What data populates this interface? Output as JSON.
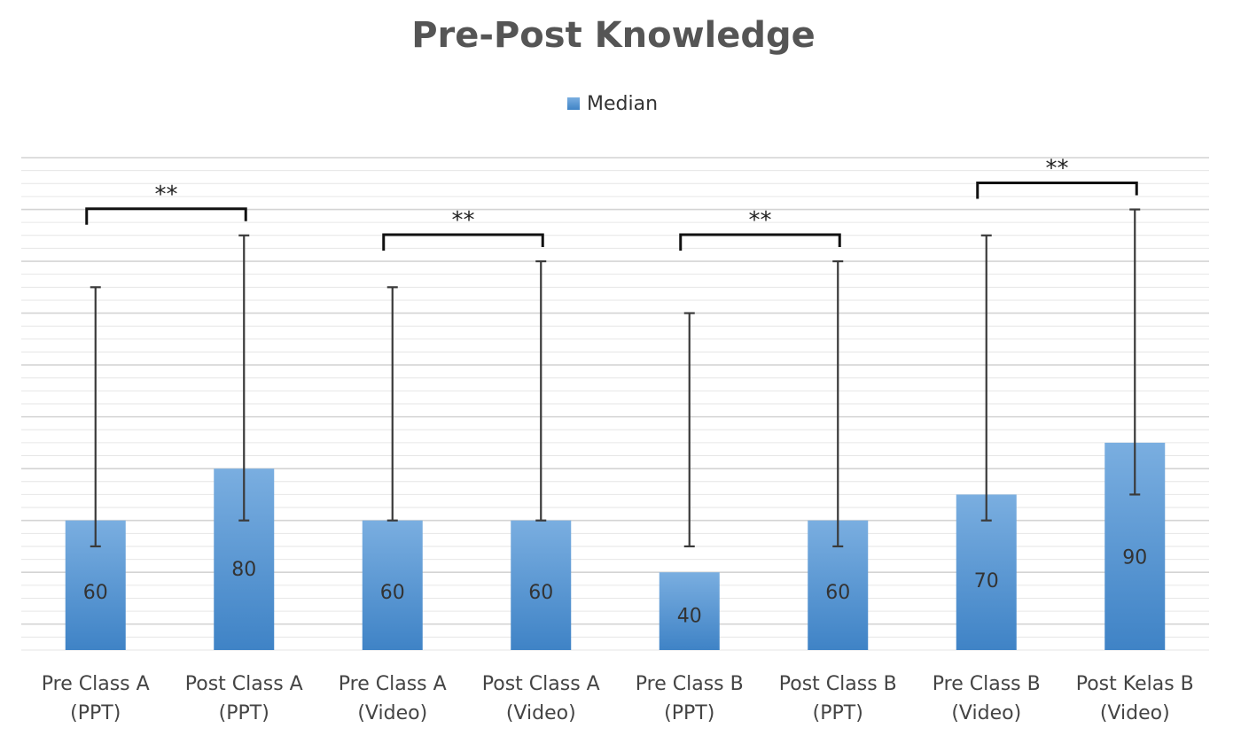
{
  "chart_data": {
    "type": "bar",
    "title": "Pre-Post Knowledge",
    "legend": {
      "position": "top-center",
      "entries": [
        "Median"
      ]
    },
    "categories": [
      [
        "Pre Class A",
        "(PPT)"
      ],
      [
        "Post Class A",
        "(PPT)"
      ],
      [
        "Pre Class A",
        "(Video)"
      ],
      [
        "Post Class  A",
        "(Video)"
      ],
      [
        "Pre Class B",
        "(PPT)"
      ],
      [
        "Post Class B",
        "(PPT)"
      ],
      [
        "Pre Class B",
        "(Video)"
      ],
      [
        "Post Kelas B",
        "(Video)"
      ]
    ],
    "series": [
      {
        "name": "Median",
        "color": "#5b9bd5",
        "values": [
          60,
          80,
          60,
          60,
          40,
          60,
          70,
          90
        ],
        "data_labels": [
          "60",
          "80",
          "60",
          "60",
          "40",
          "60",
          "70",
          "90"
        ],
        "error_low": [
          50,
          60,
          60,
          60,
          50,
          50,
          60,
          70
        ],
        "error_high": [
          150,
          170,
          150,
          160,
          140,
          160,
          170,
          180
        ]
      }
    ],
    "significance": [
      {
        "pair": [
          0,
          1
        ],
        "label": "**"
      },
      {
        "pair": [
          2,
          3
        ],
        "label": "**"
      },
      {
        "pair": [
          4,
          5
        ],
        "label": "**"
      },
      {
        "pair": [
          6,
          7
        ],
        "label": "**"
      }
    ],
    "ylim": [
      10,
      200
    ],
    "grid": true,
    "xlabel": "",
    "ylabel": ""
  }
}
